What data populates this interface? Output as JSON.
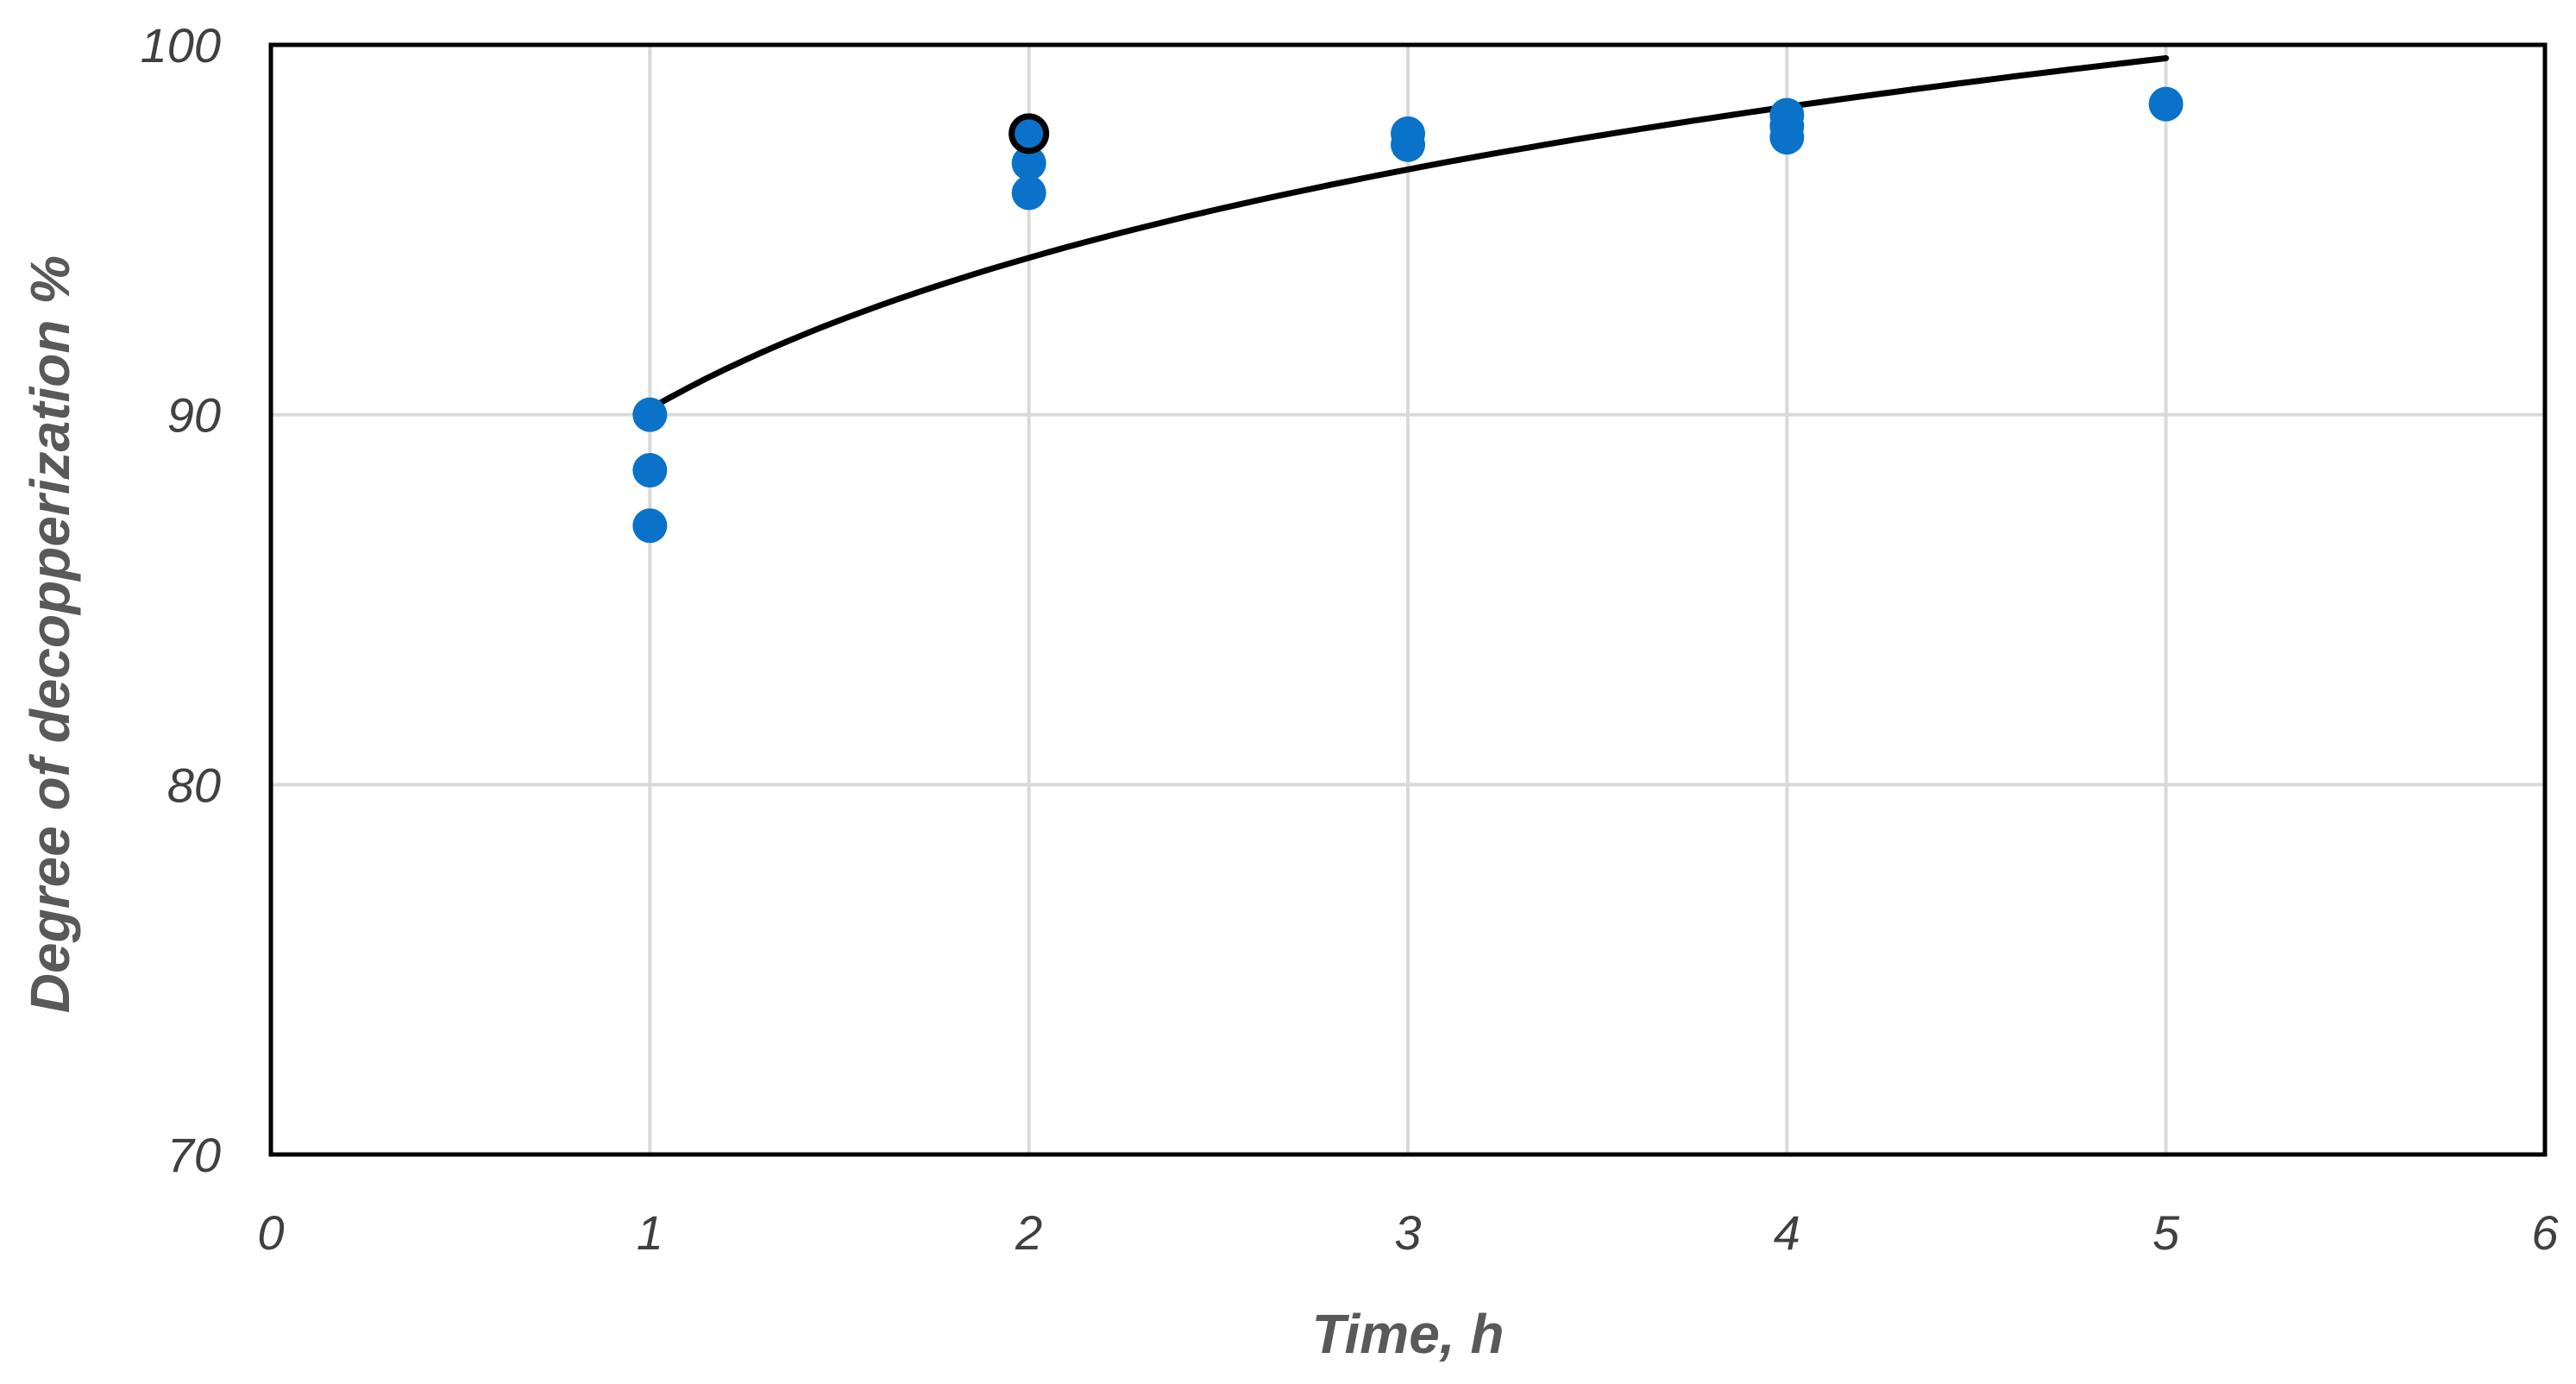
{
  "chart_data": {
    "type": "scatter",
    "xlabel": "Time, h",
    "ylabel": "Degree of decopperization %",
    "xlim": [
      0,
      6
    ],
    "ylim": [
      70,
      100
    ],
    "x_ticks": [
      "0",
      "1",
      "2",
      "3",
      "4",
      "5",
      "6"
    ],
    "y_ticks": [
      "70",
      "80",
      "90",
      "100"
    ],
    "grid": true,
    "legend": "none",
    "series": [
      {
        "color": "#0a73c9",
        "marker": "filled-circle",
        "points": [
          {
            "x": 1,
            "y": 90.0
          },
          {
            "x": 1,
            "y": 88.5
          },
          {
            "x": 1,
            "y": 87.0
          },
          {
            "x": 2,
            "y": 96.8
          },
          {
            "x": 2,
            "y": 96.0
          },
          {
            "x": 3,
            "y": 97.6
          },
          {
            "x": 3,
            "y": 97.3
          },
          {
            "x": 4,
            "y": 98.1
          },
          {
            "x": 4,
            "y": 97.8
          },
          {
            "x": 4,
            "y": 97.5
          },
          {
            "x": 5,
            "y": 98.4
          }
        ]
      },
      {
        "color": "#0a73c9",
        "edge_color": "#000000",
        "marker": "circle-black-outline",
        "points": [
          {
            "x": 2,
            "y": 97.6
          }
        ]
      }
    ],
    "trendline": {
      "type": "logarithmic",
      "color": "#000000",
      "x_range": [
        1,
        5
      ],
      "points": [
        {
          "x": 1,
          "y": 90.2
        },
        {
          "x": 2,
          "y": 94.2
        },
        {
          "x": 3,
          "y": 96.6
        },
        {
          "x": 4,
          "y": 98.3
        },
        {
          "x": 5,
          "y": 99.7
        }
      ]
    }
  }
}
